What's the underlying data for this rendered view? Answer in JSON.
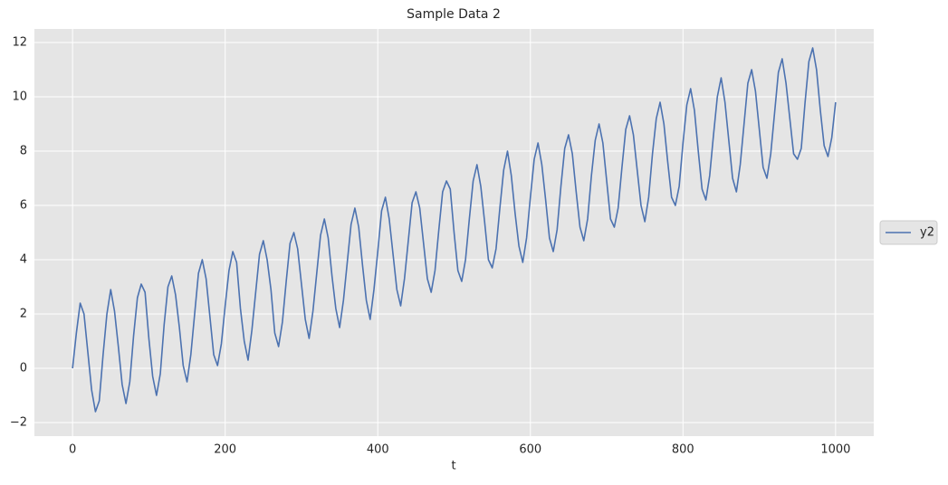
{
  "chart_data": {
    "type": "line",
    "title": "Sample Data 2",
    "x_label": "t",
    "x": [
      0,
      5,
      10,
      15,
      20,
      25,
      30,
      35,
      40,
      45,
      50,
      55,
      60,
      65,
      70,
      75,
      80,
      85,
      90,
      95,
      100,
      105,
      110,
      115,
      120,
      125,
      130,
      135,
      140,
      145,
      150,
      155,
      160,
      165,
      170,
      175,
      180,
      185,
      190,
      195,
      200,
      205,
      210,
      215,
      220,
      225,
      230,
      235,
      240,
      245,
      250,
      255,
      260,
      265,
      270,
      275,
      280,
      285,
      290,
      295,
      300,
      305,
      310,
      315,
      320,
      325,
      330,
      335,
      340,
      345,
      350,
      355,
      360,
      365,
      370,
      375,
      380,
      385,
      390,
      395,
      400,
      405,
      410,
      415,
      420,
      425,
      430,
      435,
      440,
      445,
      450,
      455,
      460,
      465,
      470,
      475,
      480,
      485,
      490,
      495,
      500,
      505,
      510,
      515,
      520,
      525,
      530,
      535,
      540,
      545,
      550,
      555,
      560,
      565,
      570,
      575,
      580,
      585,
      590,
      595,
      600,
      605,
      610,
      615,
      620,
      625,
      630,
      635,
      640,
      645,
      650,
      655,
      660,
      665,
      670,
      675,
      680,
      685,
      690,
      695,
      700,
      705,
      710,
      715,
      720,
      725,
      730,
      735,
      740,
      745,
      750,
      755,
      760,
      765,
      770,
      775,
      780,
      785,
      790,
      795,
      800,
      805,
      810,
      815,
      820,
      825,
      830,
      835,
      840,
      845,
      850,
      855,
      860,
      865,
      870,
      875,
      880,
      885,
      890,
      895,
      900,
      905,
      910,
      915,
      920,
      925,
      930,
      935,
      940,
      945,
      950,
      955,
      960,
      965,
      970,
      975,
      980,
      985,
      990,
      995,
      1000
    ],
    "series": [
      {
        "name": "y2",
        "color": "#4c72b0",
        "values": [
          0.0,
          1.3,
          2.4,
          2.0,
          0.6,
          -0.8,
          -1.6,
          -1.2,
          0.5,
          2.0,
          2.9,
          2.1,
          0.8,
          -0.6,
          -1.3,
          -0.5,
          1.2,
          2.6,
          3.1,
          2.8,
          1.1,
          -0.3,
          -1.0,
          -0.2,
          1.6,
          3.0,
          3.4,
          2.7,
          1.5,
          0.1,
          -0.5,
          0.5,
          2.0,
          3.5,
          4.0,
          3.3,
          1.9,
          0.5,
          0.1,
          0.9,
          2.3,
          3.6,
          4.3,
          3.9,
          2.2,
          1.0,
          0.3,
          1.4,
          2.8,
          4.2,
          4.7,
          4.0,
          2.9,
          1.3,
          0.8,
          1.7,
          3.2,
          4.6,
          5.0,
          4.4,
          3.1,
          1.8,
          1.1,
          2.1,
          3.5,
          4.9,
          5.5,
          4.8,
          3.4,
          2.2,
          1.5,
          2.5,
          3.9,
          5.3,
          5.9,
          5.2,
          3.8,
          2.5,
          1.8,
          2.9,
          4.3,
          5.8,
          6.3,
          5.5,
          4.2,
          2.9,
          2.3,
          3.3,
          4.7,
          6.1,
          6.5,
          5.9,
          4.6,
          3.3,
          2.8,
          3.6,
          5.1,
          6.5,
          6.9,
          6.6,
          5.0,
          3.6,
          3.2,
          4.0,
          5.5,
          6.9,
          7.5,
          6.7,
          5.4,
          4.0,
          3.7,
          4.4,
          5.9,
          7.3,
          8.0,
          7.1,
          5.7,
          4.5,
          3.9,
          4.8,
          6.3,
          7.7,
          8.3,
          7.5,
          6.2,
          4.8,
          4.3,
          5.1,
          6.7,
          8.1,
          8.6,
          7.9,
          6.5,
          5.2,
          4.7,
          5.5,
          7.1,
          8.4,
          9.0,
          8.3,
          6.9,
          5.5,
          5.2,
          5.9,
          7.4,
          8.8,
          9.3,
          8.6,
          7.3,
          6.0,
          5.4,
          6.3,
          7.9,
          9.2,
          9.8,
          9.0,
          7.6,
          6.3,
          6.0,
          6.7,
          8.3,
          9.7,
          10.3,
          9.5,
          8.0,
          6.6,
          6.2,
          7.1,
          8.6,
          10.0,
          10.7,
          9.8,
          8.4,
          7.0,
          6.5,
          7.5,
          9.0,
          10.5,
          11.0,
          10.2,
          8.8,
          7.4,
          7.0,
          7.9,
          9.4,
          10.9,
          11.4,
          10.5,
          9.2,
          7.9,
          7.7,
          8.1,
          9.8,
          11.3,
          11.8,
          11.0,
          9.5,
          8.2,
          7.8,
          8.5,
          9.8
        ]
      }
    ],
    "xlim": [
      -50,
      1050
    ],
    "ylim": [
      -2.5,
      12.5
    ],
    "xticks": [
      0,
      200,
      400,
      600,
      800,
      1000
    ],
    "yticks": [
      {
        "value": -2,
        "label": "−2"
      },
      0,
      2,
      4,
      6,
      8,
      10,
      12
    ],
    "grid": true,
    "legend": "right"
  }
}
